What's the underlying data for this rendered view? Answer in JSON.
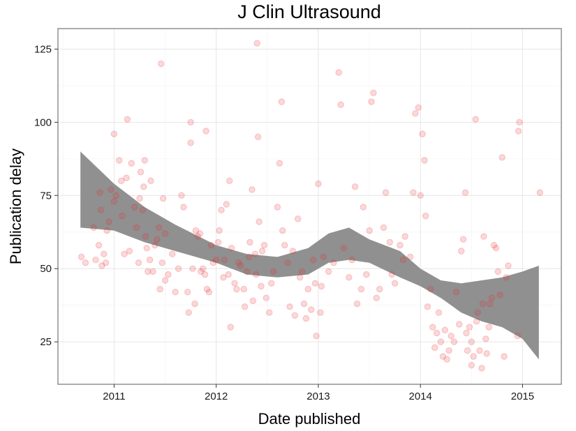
{
  "chart_data": {
    "type": "scatter",
    "title": "J Clin Ultrasound",
    "xlabel": "Date published",
    "ylabel": "Publication delay",
    "xlim": [
      2010.45,
      2015.38
    ],
    "ylim": [
      10.5,
      132
    ],
    "x_ticks": [
      2011,
      2012,
      2013,
      2014,
      2015
    ],
    "x_tick_labels": [
      "2011",
      "2012",
      "2013",
      "2014",
      "2015"
    ],
    "y_ticks": [
      25,
      50,
      75,
      100,
      125
    ],
    "y_tick_labels": [
      "25",
      "50",
      "75",
      "100",
      "125"
    ],
    "grid": true,
    "point_color": "#e8262b",
    "point_opacity": 0.18,
    "band_color": "#909090",
    "smooth_band": {
      "x": [
        2010.67,
        2011.0,
        2011.3,
        2011.6,
        2012.0,
        2012.3,
        2012.6,
        2012.9,
        2013.1,
        2013.3,
        2013.5,
        2013.8,
        2014.0,
        2014.2,
        2014.4,
        2014.6,
        2014.8,
        2015.0,
        2015.16
      ],
      "upper": [
        90,
        79,
        71,
        65,
        58,
        55,
        54,
        57,
        62,
        64,
        60,
        56,
        50,
        46,
        45,
        46,
        47,
        49,
        51
      ],
      "lower": [
        64,
        63,
        59,
        56,
        52,
        48,
        47,
        48,
        52,
        53,
        52,
        47,
        44,
        40,
        35,
        32,
        30,
        26,
        19
      ]
    },
    "points": [
      [
        2010.68,
        54
      ],
      [
        2010.72,
        52
      ],
      [
        2010.8,
        64
      ],
      [
        2010.82,
        53
      ],
      [
        2010.85,
        58
      ],
      [
        2010.86,
        76
      ],
      [
        2010.87,
        70
      ],
      [
        2010.88,
        51
      ],
      [
        2010.9,
        55
      ],
      [
        2010.92,
        52
      ],
      [
        2010.93,
        63
      ],
      [
        2010.95,
        66
      ],
      [
        2010.97,
        77
      ],
      [
        2011.0,
        96
      ],
      [
        2011.0,
        73
      ],
      [
        2011.02,
        75
      ],
      [
        2011.05,
        87
      ],
      [
        2011.07,
        80
      ],
      [
        2011.08,
        68
      ],
      [
        2011.1,
        55
      ],
      [
        2011.12,
        81
      ],
      [
        2011.13,
        101
      ],
      [
        2011.15,
        56
      ],
      [
        2011.17,
        86
      ],
      [
        2011.2,
        71
      ],
      [
        2011.22,
        64
      ],
      [
        2011.24,
        52
      ],
      [
        2011.25,
        74
      ],
      [
        2011.26,
        83
      ],
      [
        2011.28,
        70
      ],
      [
        2011.29,
        78
      ],
      [
        2011.3,
        87
      ],
      [
        2011.31,
        61
      ],
      [
        2011.32,
        57
      ],
      [
        2011.33,
        49
      ],
      [
        2011.35,
        53
      ],
      [
        2011.36,
        80
      ],
      [
        2011.38,
        49
      ],
      [
        2011.4,
        58
      ],
      [
        2011.42,
        60
      ],
      [
        2011.44,
        64
      ],
      [
        2011.45,
        43
      ],
      [
        2011.46,
        120
      ],
      [
        2011.47,
        52
      ],
      [
        2011.48,
        74
      ],
      [
        2011.5,
        46
      ],
      [
        2011.5,
        62
      ],
      [
        2011.53,
        48
      ],
      [
        2011.57,
        55
      ],
      [
        2011.6,
        42
      ],
      [
        2011.63,
        50
      ],
      [
        2011.66,
        75
      ],
      [
        2011.68,
        71
      ],
      [
        2011.72,
        42
      ],
      [
        2011.73,
        35
      ],
      [
        2011.75,
        100
      ],
      [
        2011.75,
        93
      ],
      [
        2011.77,
        50
      ],
      [
        2011.79,
        38
      ],
      [
        2011.8,
        63
      ],
      [
        2011.82,
        61
      ],
      [
        2011.84,
        62
      ],
      [
        2011.85,
        49
      ],
      [
        2011.87,
        50
      ],
      [
        2011.89,
        48
      ],
      [
        2011.9,
        97
      ],
      [
        2011.91,
        43
      ],
      [
        2011.93,
        42
      ],
      [
        2011.95,
        58
      ],
      [
        2011.97,
        52
      ],
      [
        2012.0,
        53
      ],
      [
        2012.02,
        59
      ],
      [
        2012.03,
        63
      ],
      [
        2012.05,
        70
      ],
      [
        2012.07,
        47
      ],
      [
        2012.08,
        53
      ],
      [
        2012.1,
        72
      ],
      [
        2012.12,
        48
      ],
      [
        2012.13,
        80
      ],
      [
        2012.14,
        30
      ],
      [
        2012.15,
        57
      ],
      [
        2012.18,
        45
      ],
      [
        2012.2,
        43
      ],
      [
        2012.22,
        52
      ],
      [
        2012.24,
        51
      ],
      [
        2012.27,
        43
      ],
      [
        2012.28,
        37
      ],
      [
        2012.3,
        49
      ],
      [
        2012.32,
        54
      ],
      [
        2012.33,
        59
      ],
      [
        2012.35,
        77
      ],
      [
        2012.36,
        39
      ],
      [
        2012.38,
        55
      ],
      [
        2012.39,
        48
      ],
      [
        2012.4,
        127
      ],
      [
        2012.41,
        95
      ],
      [
        2012.42,
        66
      ],
      [
        2012.44,
        44
      ],
      [
        2012.45,
        56
      ],
      [
        2012.47,
        58
      ],
      [
        2012.49,
        40
      ],
      [
        2012.52,
        35
      ],
      [
        2012.54,
        45
      ],
      [
        2012.56,
        49
      ],
      [
        2012.6,
        71
      ],
      [
        2012.62,
        86
      ],
      [
        2012.64,
        107
      ],
      [
        2012.65,
        63
      ],
      [
        2012.67,
        58
      ],
      [
        2012.7,
        52
      ],
      [
        2012.72,
        37
      ],
      [
        2012.75,
        56
      ],
      [
        2012.77,
        34
      ],
      [
        2012.8,
        67
      ],
      [
        2012.82,
        47
      ],
      [
        2012.84,
        49
      ],
      [
        2012.86,
        38
      ],
      [
        2012.88,
        33
      ],
      [
        2012.9,
        43
      ],
      [
        2012.93,
        36
      ],
      [
        2012.95,
        53
      ],
      [
        2012.97,
        45
      ],
      [
        2012.98,
        27
      ],
      [
        2013.0,
        79
      ],
      [
        2013.02,
        35
      ],
      [
        2013.03,
        44
      ],
      [
        2013.05,
        54
      ],
      [
        2013.1,
        49
      ],
      [
        2013.15,
        52
      ],
      [
        2013.2,
        117
      ],
      [
        2013.22,
        106
      ],
      [
        2013.25,
        57
      ],
      [
        2013.3,
        47
      ],
      [
        2013.33,
        53
      ],
      [
        2013.36,
        78
      ],
      [
        2013.38,
        38
      ],
      [
        2013.42,
        43
      ],
      [
        2013.44,
        71
      ],
      [
        2013.47,
        48
      ],
      [
        2013.5,
        63
      ],
      [
        2013.52,
        107
      ],
      [
        2013.54,
        110
      ],
      [
        2013.57,
        40
      ],
      [
        2013.6,
        43
      ],
      [
        2013.64,
        64
      ],
      [
        2013.66,
        76
      ],
      [
        2013.7,
        59
      ],
      [
        2013.72,
        48
      ],
      [
        2013.75,
        45
      ],
      [
        2013.8,
        58
      ],
      [
        2013.83,
        53
      ],
      [
        2013.85,
        61
      ],
      [
        2013.9,
        54
      ],
      [
        2013.93,
        76
      ],
      [
        2013.95,
        103
      ],
      [
        2013.98,
        105
      ],
      [
        2014.0,
        75
      ],
      [
        2014.02,
        96
      ],
      [
        2014.04,
        87
      ],
      [
        2014.05,
        68
      ],
      [
        2014.07,
        37
      ],
      [
        2014.1,
        43
      ],
      [
        2014.12,
        30
      ],
      [
        2014.14,
        23
      ],
      [
        2014.16,
        28
      ],
      [
        2014.18,
        35
      ],
      [
        2014.2,
        25
      ],
      [
        2014.22,
        20
      ],
      [
        2014.24,
        29
      ],
      [
        2014.26,
        19
      ],
      [
        2014.28,
        22
      ],
      [
        2014.3,
        27
      ],
      [
        2014.33,
        25
      ],
      [
        2014.35,
        42
      ],
      [
        2014.38,
        31
      ],
      [
        2014.4,
        56
      ],
      [
        2014.42,
        60
      ],
      [
        2014.44,
        76
      ],
      [
        2014.45,
        28
      ],
      [
        2014.46,
        22
      ],
      [
        2014.48,
        30
      ],
      [
        2014.5,
        25
      ],
      [
        2014.5,
        17
      ],
      [
        2014.52,
        20
      ],
      [
        2014.54,
        101
      ],
      [
        2014.55,
        32
      ],
      [
        2014.56,
        35
      ],
      [
        2014.58,
        22
      ],
      [
        2014.6,
        16
      ],
      [
        2014.61,
        38
      ],
      [
        2014.62,
        61
      ],
      [
        2014.64,
        26
      ],
      [
        2014.65,
        21
      ],
      [
        2014.67,
        30
      ],
      [
        2014.68,
        38
      ],
      [
        2014.7,
        40
      ],
      [
        2014.72,
        58
      ],
      [
        2014.74,
        57
      ],
      [
        2014.76,
        49
      ],
      [
        2014.78,
        41
      ],
      [
        2014.8,
        88
      ],
      [
        2014.82,
        20
      ],
      [
        2014.84,
        47
      ],
      [
        2014.86,
        51
      ],
      [
        2014.96,
        97
      ],
      [
        2014.97,
        100
      ],
      [
        2014.95,
        27
      ],
      [
        2015.17,
        76
      ]
    ]
  }
}
